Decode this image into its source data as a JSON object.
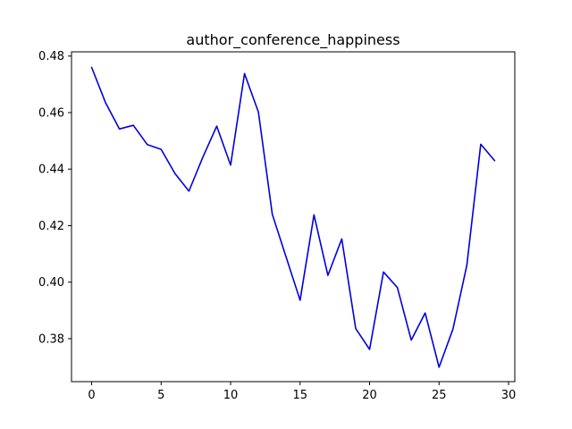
{
  "chart_data": {
    "type": "line",
    "title": "author_conference_happiness",
    "xlabel": "",
    "ylabel": "",
    "xlim": [
      -1.45,
      30.45
    ],
    "ylim": [
      0.3648,
      0.4815
    ],
    "x_ticks": [
      0,
      5,
      10,
      15,
      20,
      25,
      30
    ],
    "y_ticks": [
      0.38,
      0.4,
      0.42,
      0.44,
      0.46,
      0.48
    ],
    "x_tick_labels": [
      "0",
      "5",
      "10",
      "15",
      "20",
      "25",
      "30"
    ],
    "y_tick_labels": [
      "0.38",
      "0.40",
      "0.42",
      "0.44",
      "0.46",
      "0.48"
    ],
    "grid": false,
    "series": [
      {
        "color": "#0000dd",
        "x": [
          0,
          1,
          2,
          3,
          4,
          5,
          6,
          7,
          8,
          9,
          10,
          11,
          12,
          13,
          14,
          15,
          16,
          17,
          18,
          19,
          20,
          21,
          22,
          23,
          24,
          25,
          26,
          27,
          28,
          29
        ],
        "values": [
          0.476,
          0.4635,
          0.4542,
          0.4555,
          0.4487,
          0.447,
          0.4384,
          0.4322,
          0.4442,
          0.4552,
          0.4414,
          0.4738,
          0.4602,
          0.424,
          0.4088,
          0.3936,
          0.4238,
          0.4024,
          0.4153,
          0.3836,
          0.3762,
          0.4036,
          0.3981,
          0.3795,
          0.3891,
          0.3699,
          0.3834,
          0.406,
          0.4488,
          0.443
        ]
      }
    ]
  }
}
